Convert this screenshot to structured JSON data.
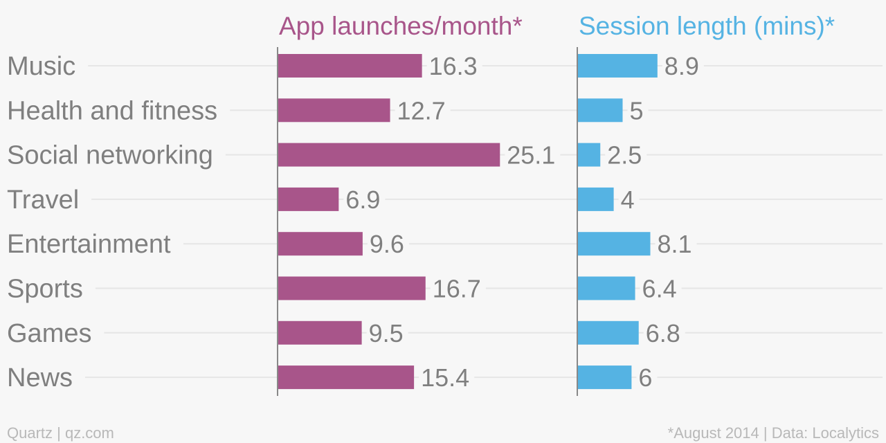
{
  "chart_data": {
    "type": "bar",
    "orientation": "horizontal",
    "categories": [
      "Music",
      "Health and fitness",
      "Social networking",
      "Travel",
      "Entertainment",
      "Sports",
      "Games",
      "News"
    ],
    "series": [
      {
        "name": "App launches/month*",
        "color": "#a8558a",
        "values": [
          16.3,
          12.7,
          25.1,
          6.9,
          9.6,
          16.7,
          9.5,
          15.4
        ],
        "value_labels": [
          "16.3",
          "12.7",
          "25.1",
          "6.9",
          "9.6",
          "16.7",
          "9.5",
          "15.4"
        ],
        "xlim": [
          0,
          28
        ]
      },
      {
        "name": "Session length (mins)*",
        "color": "#55b3e3",
        "values": [
          8.9,
          5,
          2.5,
          4,
          8.1,
          6.4,
          6.8,
          6
        ],
        "value_labels": [
          "8.9",
          "5",
          "2.5",
          "4",
          "8.1",
          "6.4",
          "6.8",
          "6"
        ],
        "xlim": [
          0,
          15
        ]
      }
    ],
    "grid": true,
    "legend": "panel-titles"
  },
  "footer": {
    "left": "Quartz | qz.com",
    "right": "*August 2014 | Data: Localytics"
  }
}
